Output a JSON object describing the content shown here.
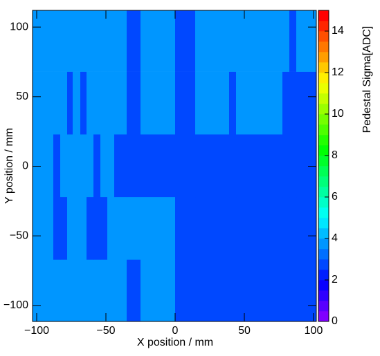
{
  "chart_data": {
    "type": "heatmap",
    "x_title": "X position / mm",
    "y_title": "Y position / mm",
    "z_title": "Pedestal Sigma[ADC]",
    "x_edges": [
      -103,
      -88,
      -83,
      -78,
      -74,
      -68.5,
      -64,
      -59,
      -54,
      -49,
      -44,
      -35,
      -25,
      0,
      14.5,
      39,
      44,
      77.5,
      82.5,
      87.5,
      102
    ],
    "y_edges": [
      -111.5,
      -67,
      -22,
      23,
      68,
      112
    ],
    "z": [
      [
        3.8,
        3.8,
        3.8,
        3.8,
        3.8,
        3.8,
        3.8,
        3.8,
        3.8,
        3.8,
        3.8,
        2.8,
        3.8,
        2.8,
        2.8,
        2.8,
        2.8,
        2.8,
        2.8,
        2.8
      ],
      [
        3.8,
        2.8,
        2.8,
        3.8,
        3.8,
        3.8,
        2.8,
        2.8,
        2.8,
        3.8,
        3.8,
        3.8,
        3.8,
        2.8,
        2.8,
        2.8,
        2.8,
        2.8,
        2.8,
        2.8
      ],
      [
        3.8,
        2.8,
        3.8,
        3.8,
        3.8,
        3.8,
        3.8,
        2.8,
        3.8,
        3.8,
        2.8,
        2.8,
        2.8,
        2.8,
        2.8,
        2.8,
        2.8,
        2.8,
        2.8,
        2.8
      ],
      [
        3.8,
        3.8,
        3.8,
        2.8,
        3.8,
        2.8,
        3.8,
        3.8,
        3.8,
        3.8,
        3.8,
        2.8,
        3.8,
        2.8,
        3.8,
        2.8,
        3.8,
        2.8,
        2.8,
        2.8
      ],
      [
        3.8,
        3.8,
        3.8,
        3.8,
        3.8,
        3.8,
        3.8,
        3.8,
        3.8,
        3.8,
        3.8,
        2.8,
        3.8,
        2.8,
        3.8,
        3.8,
        3.8,
        3.8,
        2.8,
        3.8
      ]
    ],
    "xlim": [
      -103,
      102
    ],
    "ylim": [
      -111.5,
      112
    ],
    "zlim": [
      0,
      15
    ],
    "xticks": [
      {
        "value": -100,
        "label": "−100"
      },
      {
        "value": -50,
        "label": "−50"
      },
      0,
      50,
      100
    ],
    "yticks": [
      {
        "value": -100,
        "label": "−100"
      },
      {
        "value": -50,
        "label": "−50"
      },
      0,
      50,
      100
    ],
    "zticks": [
      0,
      2,
      4,
      6,
      8,
      10,
      12,
      14
    ],
    "palette": [
      "#8000ff",
      "#5900ff",
      "#2f00ff",
      "#0800ff",
      "#001eff",
      "#0048ff",
      "#006fff",
      "#0096ff",
      "#00bdff",
      "#00e6ff",
      "#00fff1",
      "#00ffc8",
      "#00ffa1",
      "#00ff7a",
      "#00ff55",
      "#00ff2b",
      "#00ff04",
      "#22ff00",
      "#4dff00",
      "#74ff00",
      "#9aff00",
      "#c4ff00",
      "#ebff00",
      "#ffee00",
      "#ffc800",
      "#ff9d00",
      "#ff7700",
      "#ff5000",
      "#ff2600",
      "#ff0000"
    ]
  }
}
